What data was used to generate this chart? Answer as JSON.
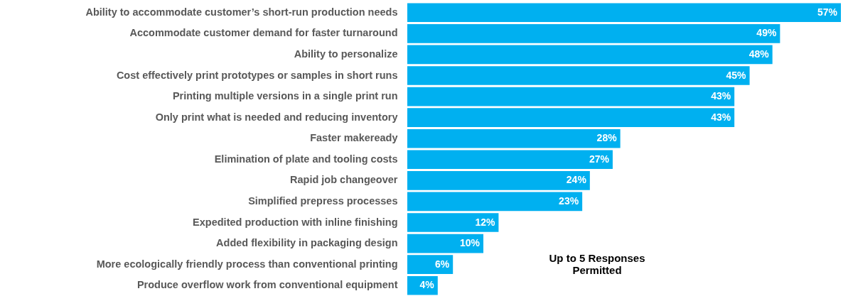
{
  "chart_data": {
    "type": "bar",
    "orientation": "horizontal",
    "color": "#00b0f0",
    "categories": [
      "Ability to accommodate customer’s short-run production needs",
      "Accommodate customer demand for faster turnaround",
      "Ability to personalize",
      "Cost effectively print prototypes or samples in short runs ",
      "Printing multiple versions in a single print run",
      "Only print what is needed and reducing inventory",
      "Faster makeready",
      "Elimination of plate and tooling costs",
      "Rapid job changeover",
      "Simplified prepress processes",
      "Expedited production with inline finishing",
      "Added flexibility in packaging design",
      "More ecologically friendly process than conventional printing",
      "Produce overflow work from conventional equipment"
    ],
    "values": [
      57,
      49,
      48,
      45,
      43,
      43,
      28,
      27,
      24,
      23,
      12,
      10,
      6,
      4
    ],
    "value_labels": [
      "57%",
      "49%",
      "48%",
      "45%",
      "43%",
      "43%",
      "28%",
      "27%",
      "24%",
      "23%",
      "12%",
      "10%",
      "6%",
      "4%"
    ],
    "annotations": [
      "Up to 5 Responses\nPermitted"
    ]
  }
}
